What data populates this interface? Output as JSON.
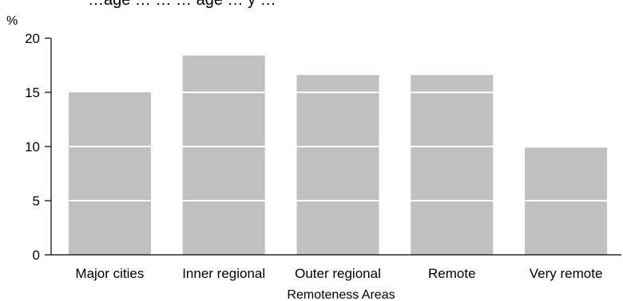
{
  "chart_data": {
    "type": "bar",
    "title": "…age … … … age … y …",
    "ylabel": "%",
    "xlabel": "Remoteness Areas",
    "categories": [
      "Major cities",
      "Inner regional",
      "Outer regional",
      "Remote",
      "Very remote"
    ],
    "values": [
      15.0,
      18.4,
      16.6,
      16.6,
      9.9
    ],
    "ylim": [
      0,
      20
    ],
    "yticks": [
      0,
      5,
      10,
      15,
      20
    ],
    "grid": false,
    "bar_color": "#c0c0c0",
    "gridline_color": "#ffffff"
  }
}
